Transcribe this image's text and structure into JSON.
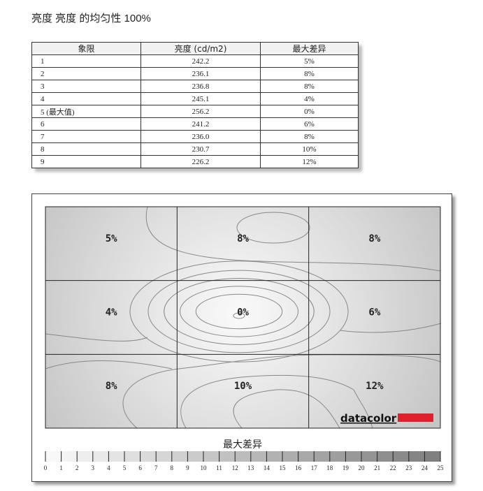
{
  "title": "亮度 亮度 的均匀性 100%",
  "table": {
    "headers": [
      "象限",
      "亮度 (cd/m2)",
      "最大差异"
    ],
    "rows": [
      [
        "1",
        "242.2",
        "5%"
      ],
      [
        "2",
        "236.1",
        "8%"
      ],
      [
        "3",
        "236.8",
        "8%"
      ],
      [
        "4",
        "245.1",
        "4%"
      ],
      [
        "5 (最大值)",
        "256.2",
        "0%"
      ],
      [
        "6",
        "241.2",
        "6%"
      ],
      [
        "7",
        "236.0",
        "8%"
      ],
      [
        "8",
        "230.7",
        "10%"
      ],
      [
        "9",
        "226.2",
        "12%"
      ]
    ]
  },
  "chart_data": {
    "type": "heatmap",
    "rows": 3,
    "cols": 3,
    "cells": [
      "5%",
      "8%",
      "8%",
      "4%",
      "0%",
      "6%",
      "8%",
      "10%",
      "12%"
    ],
    "values": [
      [
        5,
        8,
        8
      ],
      [
        4,
        0,
        6
      ],
      [
        8,
        10,
        12
      ]
    ],
    "colorbar": {
      "title": "最大差异",
      "min": 0,
      "max": 25,
      "ticks": [
        0,
        1,
        2,
        3,
        4,
        5,
        6,
        7,
        8,
        9,
        10,
        11,
        12,
        13,
        14,
        15,
        16,
        17,
        18,
        19,
        20,
        21,
        22,
        23,
        24,
        25
      ],
      "color_low": "#f8f8f8",
      "color_high": "#808080"
    },
    "contours": true
  },
  "logo": {
    "text": "datacolor",
    "accent": "#e0202a"
  }
}
